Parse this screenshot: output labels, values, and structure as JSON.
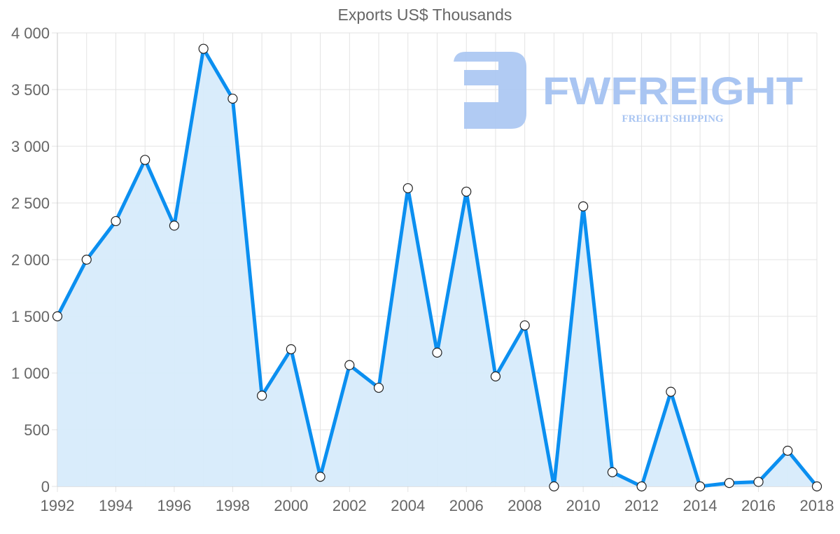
{
  "chart_data": {
    "type": "area",
    "title": "Exports US$ Thousands",
    "xlabel": "",
    "ylabel": "",
    "x": [
      1992,
      1993,
      1994,
      1995,
      1996,
      1997,
      1998,
      1999,
      2000,
      2001,
      2002,
      2003,
      2004,
      2005,
      2006,
      2007,
      2008,
      2009,
      2010,
      2011,
      2012,
      2013,
      2014,
      2015,
      2016,
      2017,
      2018
    ],
    "series": [
      {
        "name": "Exports",
        "values": [
          1500,
          2000,
          2340,
          2880,
          2300,
          3860,
          3420,
          800,
          1210,
          85,
          1070,
          870,
          2630,
          1180,
          2600,
          970,
          1420,
          0,
          2470,
          125,
          0,
          835,
          0,
          30,
          40,
          315,
          0
        ]
      }
    ],
    "x_tick_labels": [
      "1992",
      "1994",
      "1996",
      "1998",
      "2000",
      "2002",
      "2004",
      "2006",
      "2008",
      "2010",
      "2012",
      "2014",
      "2016",
      "2018"
    ],
    "y_tick_labels": [
      "0",
      "500",
      "1 000",
      "1 500",
      "2 000",
      "2 500",
      "3 000",
      "3 500",
      "4 000"
    ],
    "ylim": [
      0,
      4000
    ],
    "xlim": [
      1992,
      2018
    ],
    "grid": true,
    "legend": "none",
    "colors": {
      "line": "#0b8ff0",
      "fill": "#d7ebfb",
      "grid": "#e3e3e3",
      "marker_fill": "#ffffff",
      "marker_stroke": "#222222"
    }
  },
  "watermark": {
    "brand": "FWFREIGHT",
    "tagline": "FREIGHT SHIPPING",
    "color": "#a9c5f2"
  }
}
